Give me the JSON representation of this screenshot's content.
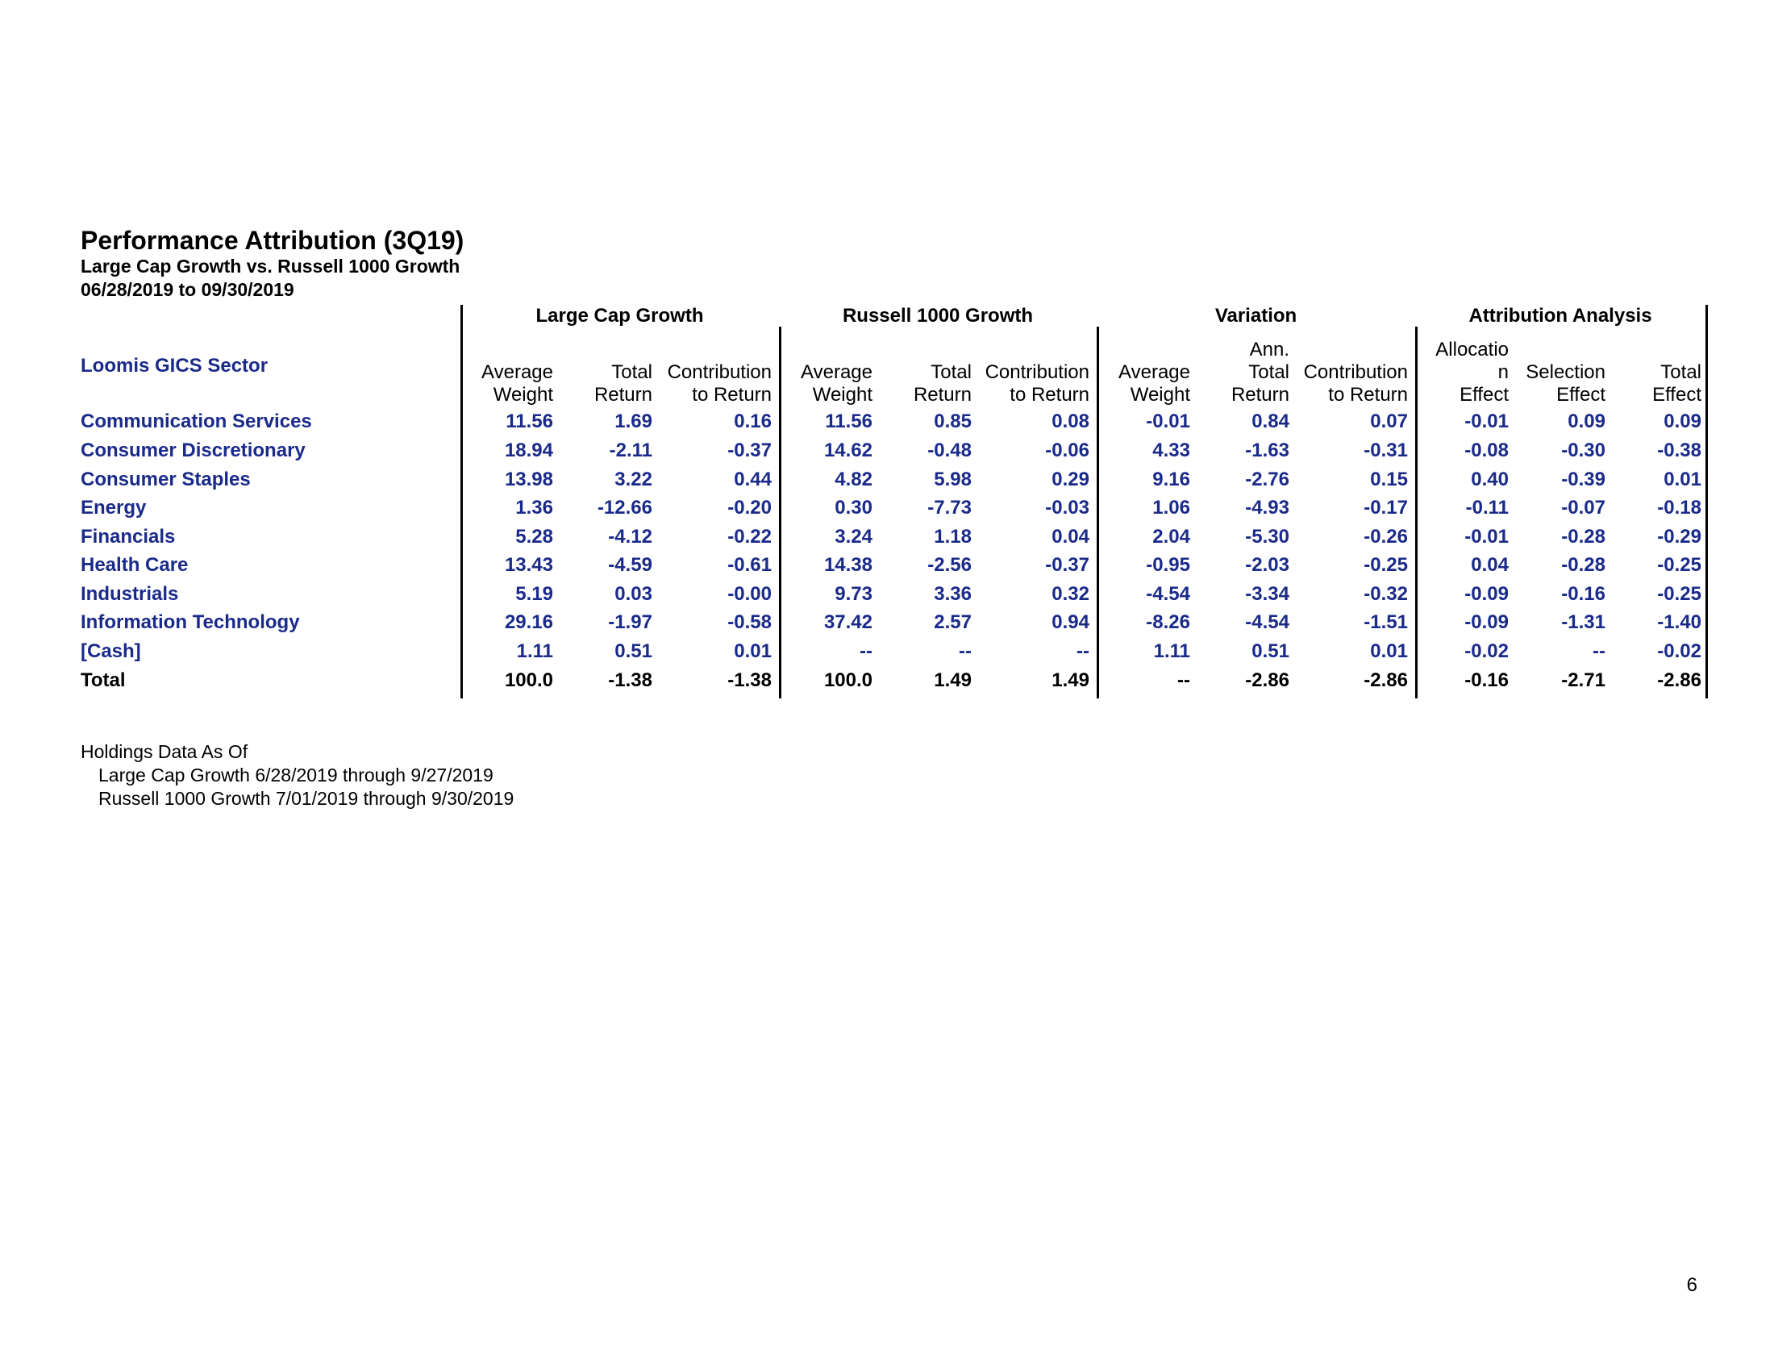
{
  "report": {
    "title": "Performance Attribution (3Q19)",
    "subtitle": "Large Cap Growth vs. Russell 1000 Growth",
    "date_range": "06/28/2019 to 09/30/2019"
  },
  "groups": [
    "Large Cap Growth",
    "Russell 1000 Growth",
    "Variation",
    "Attribution Analysis"
  ],
  "sector_header": "Loomis GICS Sector",
  "columns": [
    [
      "",
      "Average",
      "Weight"
    ],
    [
      "",
      "Total",
      "Return"
    ],
    [
      "",
      "Contribution",
      "to Return"
    ],
    [
      "",
      "Average",
      "Weight"
    ],
    [
      "",
      "Total",
      "Return"
    ],
    [
      "",
      "Contribution",
      "to Return"
    ],
    [
      "",
      "Average",
      "Weight"
    ],
    [
      "Ann.",
      "Total",
      "Return"
    ],
    [
      "",
      "Contribution",
      "to Return"
    ],
    [
      "Allocatio",
      "n",
      "Effect"
    ],
    [
      "",
      "Selection",
      "Effect"
    ],
    [
      "",
      "Total",
      "Effect"
    ]
  ],
  "rows": [
    {
      "label": "Communication Services",
      "values": [
        "11.56",
        "1.69",
        "0.16",
        "11.56",
        "0.85",
        "0.08",
        "-0.01",
        "0.84",
        "0.07",
        "-0.01",
        "0.09",
        "0.09"
      ]
    },
    {
      "label": "Consumer Discretionary",
      "values": [
        "18.94",
        "-2.11",
        "-0.37",
        "14.62",
        "-0.48",
        "-0.06",
        "4.33",
        "-1.63",
        "-0.31",
        "-0.08",
        "-0.30",
        "-0.38"
      ]
    },
    {
      "label": "Consumer Staples",
      "values": [
        "13.98",
        "3.22",
        "0.44",
        "4.82",
        "5.98",
        "0.29",
        "9.16",
        "-2.76",
        "0.15",
        "0.40",
        "-0.39",
        "0.01"
      ]
    },
    {
      "label": "Energy",
      "values": [
        "1.36",
        "-12.66",
        "-0.20",
        "0.30",
        "-7.73",
        "-0.03",
        "1.06",
        "-4.93",
        "-0.17",
        "-0.11",
        "-0.07",
        "-0.18"
      ]
    },
    {
      "label": "Financials",
      "values": [
        "5.28",
        "-4.12",
        "-0.22",
        "3.24",
        "1.18",
        "0.04",
        "2.04",
        "-5.30",
        "-0.26",
        "-0.01",
        "-0.28",
        "-0.29"
      ]
    },
    {
      "label": "Health Care",
      "values": [
        "13.43",
        "-4.59",
        "-0.61",
        "14.38",
        "-2.56",
        "-0.37",
        "-0.95",
        "-2.03",
        "-0.25",
        "0.04",
        "-0.28",
        "-0.25"
      ]
    },
    {
      "label": "Industrials",
      "values": [
        "5.19",
        "0.03",
        "-0.00",
        "9.73",
        "3.36",
        "0.32",
        "-4.54",
        "-3.34",
        "-0.32",
        "-0.09",
        "-0.16",
        "-0.25"
      ]
    },
    {
      "label": "Information Technology",
      "values": [
        "29.16",
        "-1.97",
        "-0.58",
        "37.42",
        "2.57",
        "0.94",
        "-8.26",
        "-4.54",
        "-1.51",
        "-0.09",
        "-1.31",
        "-1.40"
      ]
    },
    {
      "label": "[Cash]",
      "values": [
        "1.11",
        "0.51",
        "0.01",
        "--",
        "--",
        "--",
        "1.11",
        "0.51",
        "0.01",
        "-0.02",
        "--",
        "-0.02"
      ]
    },
    {
      "label": "Total",
      "values": [
        "100.0",
        "-1.38",
        "-1.38",
        "100.0",
        "1.49",
        "1.49",
        "--",
        "-2.86",
        "-2.86",
        "-0.16",
        "-2.71",
        "-2.86"
      ],
      "is_total": true
    }
  ],
  "notes": {
    "heading": "Holdings Data As Of",
    "line1": "Large Cap Growth 6/28/2019 through 9/27/2019",
    "line2": "Russell 1000 Growth 7/01/2019 through 9/30/2019"
  },
  "page_number": "6",
  "colors": {
    "label_blue": "#1a2a8a",
    "text": "#000000"
  }
}
